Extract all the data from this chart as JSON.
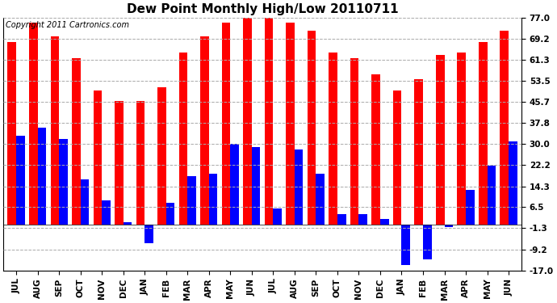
{
  "title": "Dew Point Monthly High/Low 20110711",
  "copyright": "Copyright 2011 Cartronics.com",
  "months": [
    "JUL",
    "AUG",
    "SEP",
    "OCT",
    "NOV",
    "DEC",
    "JAN",
    "FEB",
    "MAR",
    "APR",
    "MAY",
    "JUN",
    "JUL",
    "AUG",
    "SEP",
    "OCT",
    "NOV",
    "DEC",
    "JAN",
    "FEB",
    "MAR",
    "APR",
    "MAY",
    "JUN"
  ],
  "highs": [
    68,
    75,
    70,
    62,
    50,
    46,
    46,
    51,
    64,
    70,
    75,
    78,
    78,
    75,
    72,
    64,
    62,
    56,
    50,
    54,
    63,
    64,
    68,
    72
  ],
  "lows": [
    33,
    36,
    32,
    17,
    9,
    1,
    -7,
    8,
    18,
    19,
    30,
    29,
    6,
    28,
    19,
    4,
    4,
    2,
    -15,
    -13,
    -1,
    13,
    22,
    31
  ],
  "bar_width": 0.4,
  "high_color": "#ff0000",
  "low_color": "#0000ff",
  "background_color": "#ffffff",
  "plot_bg_color": "#ffffff",
  "grid_color": "#aaaaaa",
  "yticks": [
    77.0,
    69.2,
    61.3,
    53.5,
    45.7,
    37.8,
    30.0,
    22.2,
    14.3,
    6.5,
    -1.3,
    -9.2,
    -17.0
  ],
  "ylim": [
    -17.0,
    77.0
  ],
  "title_fontsize": 11,
  "tick_fontsize": 7.5,
  "copyright_fontsize": 7,
  "figsize": [
    6.9,
    3.75
  ],
  "dpi": 100
}
